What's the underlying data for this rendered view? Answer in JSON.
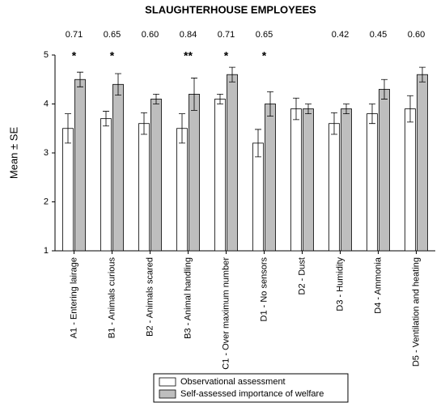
{
  "chart_data": {
    "type": "bar",
    "title": "SLAUGHTERHOUSE EMPLOYEES",
    "y_label": "Mean ± SE",
    "categories": [
      "A1 - Entering lairage",
      "B1 - Animals curious",
      "B2 - Animals scared",
      "B3 - Animal handling",
      "C1 - Over maximum number",
      "D1 - No sensors",
      "D2 - Dust",
      "D3 - Humidity",
      "D4 - Ammonia",
      "D5 - Ventilation and heating"
    ],
    "series": [
      {
        "name": "Observational assessment",
        "color": "#ffffff",
        "values": [
          3.5,
          3.7,
          3.6,
          3.5,
          4.1,
          3.2,
          3.9,
          3.6,
          3.8,
          3.9
        ],
        "errors": [
          0.3,
          0.15,
          0.22,
          0.3,
          0.1,
          0.28,
          0.22,
          0.22,
          0.2,
          0.27
        ]
      },
      {
        "name": "Self-assessed importance of welfare",
        "color": "#bebebe",
        "values": [
          4.5,
          4.4,
          4.1,
          4.2,
          4.6,
          4.0,
          3.9,
          3.9,
          4.3,
          4.6
        ],
        "errors": [
          0.15,
          0.22,
          0.1,
          0.33,
          0.15,
          0.25,
          0.1,
          0.1,
          0.2,
          0.15
        ]
      }
    ],
    "correlations": [
      "0.71",
      "0.65",
      "0.60",
      "0.84",
      "0.71",
      "0.65",
      null,
      "0.42",
      "0.45",
      "0.60"
    ],
    "significance": [
      "*",
      "*",
      null,
      "**",
      "*",
      "*",
      null,
      null,
      null,
      null
    ],
    "ylim": [
      1,
      5
    ],
    "yticks": [
      1,
      2,
      3,
      4,
      5
    ],
    "grid": false,
    "legend": "bottom"
  }
}
